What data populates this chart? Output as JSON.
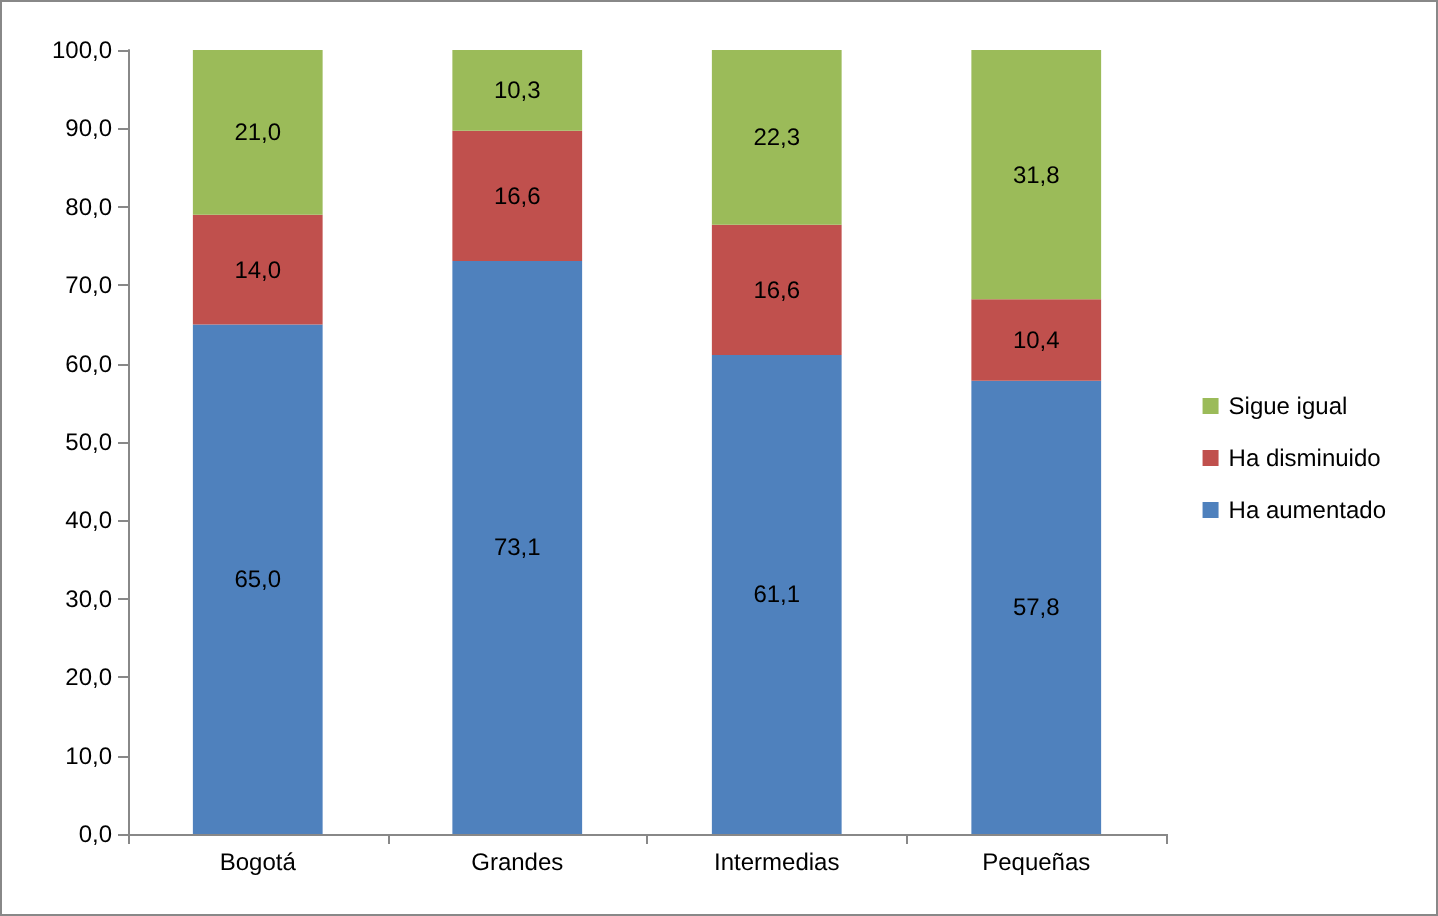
{
  "chart_data": {
    "type": "bar",
    "stacked": true,
    "categories": [
      "Bogotá",
      "Grandes",
      "Intermedias",
      "Pequeñas"
    ],
    "series": [
      {
        "name": "Ha aumentado",
        "color": "#4f81bd",
        "values": [
          65.0,
          73.1,
          61.1,
          57.8
        ],
        "value_labels": [
          "65,0",
          "73,1",
          "61,1",
          "57,8"
        ]
      },
      {
        "name": "Ha disminuido",
        "color": "#c0504d",
        "values": [
          14.0,
          16.6,
          16.6,
          10.4
        ],
        "value_labels": [
          "14,0",
          "16,6",
          "16,6",
          "10,4"
        ]
      },
      {
        "name": "Sigue igual",
        "color": "#9bbb59",
        "values": [
          21.0,
          10.3,
          22.3,
          31.8
        ],
        "value_labels": [
          "21,0",
          "10,3",
          "22,3",
          "31,8"
        ]
      }
    ],
    "ylim": [
      0,
      100
    ],
    "yticks": [
      {
        "value": 0,
        "label": "0,0"
      },
      {
        "value": 10,
        "label": "10,0"
      },
      {
        "value": 20,
        "label": "20,0"
      },
      {
        "value": 30,
        "label": "30,0"
      },
      {
        "value": 40,
        "label": "40,0"
      },
      {
        "value": 50,
        "label": "50,0"
      },
      {
        "value": 60,
        "label": "60,0"
      },
      {
        "value": 70,
        "label": "70,0"
      },
      {
        "value": 80,
        "label": "80,0"
      },
      {
        "value": 90,
        "label": "90,0"
      },
      {
        "value": 100,
        "label": "100,0"
      }
    ],
    "grid": false,
    "legend": "right"
  }
}
